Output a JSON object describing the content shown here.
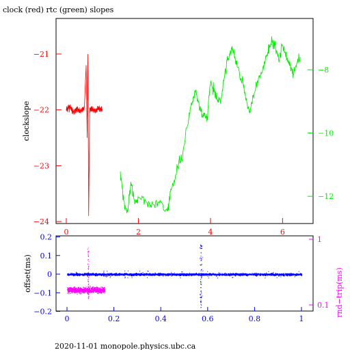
{
  "title": "clock (red) rtc (green) slopes",
  "footer": "2020-11-01 monopole.physics.ubc.ca",
  "colors": {
    "red": "#ff0000",
    "green": "#00ee00",
    "blue": "#0000ff",
    "magenta": "#ff00ff",
    "black": "#000000"
  },
  "chart_data": [
    {
      "type": "line",
      "title": "clock (red) rtc (green) slopes",
      "ylabel": "clockslope",
      "xlim": [
        0,
        6.6
      ],
      "ylim_left": [
        -24,
        -20.4
      ],
      "ylim_right": [
        -12.8,
        -6.2
      ],
      "x_ticks": [
        "0",
        "2",
        "4",
        "6"
      ],
      "left_ticks": [
        "-21",
        "-22",
        "-23",
        "-24"
      ],
      "right_ticks": [
        "-8",
        "-10",
        "-12"
      ],
      "series": [
        {
          "color": "red",
          "axis": "left",
          "x": [
            0,
            0.1,
            0.2,
            0.3,
            0.4,
            0.5,
            0.55,
            0.58,
            0.6,
            0.62,
            0.65,
            0.7,
            0.8,
            0.9,
            1.0
          ],
          "y": [
            -22.0,
            -21.95,
            -22.05,
            -21.98,
            -22.02,
            -21.97,
            -21.2,
            -22.5,
            -21.0,
            -23.9,
            -22.0,
            -21.98,
            -22.03,
            -21.97,
            -22.0
          ]
        },
        {
          "color": "green",
          "axis": "right",
          "x": [
            1.5,
            1.6,
            1.7,
            1.8,
            1.9,
            2.0,
            2.2,
            2.4,
            2.6,
            2.8,
            2.9,
            3.0,
            3.1,
            3.2,
            3.4,
            3.5,
            3.6,
            3.7,
            3.8,
            3.9,
            4.0,
            4.1,
            4.2,
            4.3,
            4.4,
            4.5,
            4.6,
            4.7,
            4.8,
            4.9,
            5.0,
            5.1,
            5.2,
            5.3,
            5.4,
            5.5,
            5.6,
            5.7,
            5.8,
            5.9,
            6.0,
            6.1,
            6.2,
            6.3,
            6.4,
            6.5
          ],
          "y": [
            -11.2,
            -12.2,
            -12.5,
            -11.6,
            -12.3,
            -12.0,
            -12.1,
            -12.3,
            -12.2,
            -12.5,
            -11.8,
            -11.5,
            -11.0,
            -10.8,
            -9.5,
            -8.9,
            -8.7,
            -9.2,
            -9.4,
            -9.6,
            -8.4,
            -8.7,
            -9.0,
            -8.9,
            -8.1,
            -7.6,
            -7.3,
            -7.7,
            -8.1,
            -8.4,
            -9.1,
            -9.3,
            -8.7,
            -8.4,
            -8.2,
            -7.8,
            -7.4,
            -7.1,
            -7.3,
            -7.7,
            -7.2,
            -7.6,
            -7.8,
            -8.2,
            -7.7,
            -7.6
          ]
        }
      ]
    },
    {
      "type": "scatter",
      "ylabel": "offset(ms)",
      "ylabel_right": "rnd−trip(ms)",
      "xlim": [
        0,
        1
      ],
      "ylim": [
        -0.2,
        0.2
      ],
      "right_scale": "log",
      "ylim_right": [
        0.08,
        1.0
      ],
      "x_ticks": [
        "0",
        "0.2",
        "0.4",
        "0.6",
        "0.8",
        "1"
      ],
      "y_ticks": [
        "0.2",
        "0.1",
        "0",
        "−0.1",
        "−0.2"
      ],
      "right_ticks": [
        "1",
        "0.1"
      ],
      "series": [
        {
          "color": "blue",
          "axis": "left",
          "x_range": [
            0,
            1
          ],
          "y_center": 0.0,
          "spike_x": 0.57
        },
        {
          "color": "magenta",
          "axis": "right",
          "x_range": [
            0,
            0.16
          ],
          "y_center": 0.17,
          "spike_x": 0.09
        }
      ]
    }
  ]
}
